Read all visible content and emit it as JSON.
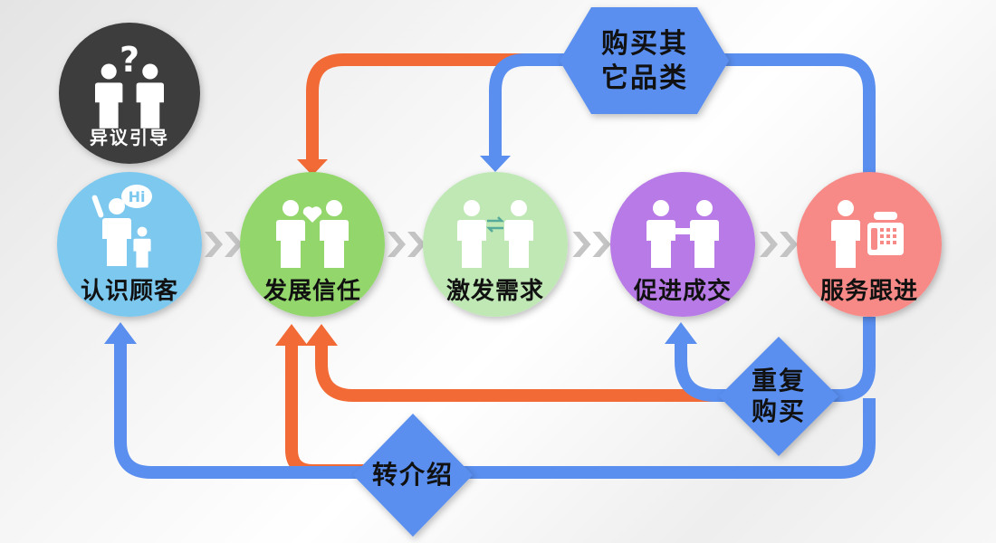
{
  "objection": {
    "label": "异议引导",
    "color": "#3d3d3d"
  },
  "steps": [
    {
      "label": "认识顾客",
      "color": "#7cc8ef",
      "bubble": "Hi",
      "icon": "greeting-people-icon"
    },
    {
      "label": "发展信任",
      "color": "#92d66c",
      "icon": "people-heart-icon"
    },
    {
      "label": "激发需求",
      "color": "#bfe8b5",
      "icon": "people-exchange-icon"
    },
    {
      "label": "促进成交",
      "color": "#b77ae6",
      "icon": "handshake-icon"
    },
    {
      "label": "服务跟进",
      "color": "#f78a86",
      "icon": "person-phone-icon"
    }
  ],
  "loops": {
    "buy_other": {
      "line1": "购买其",
      "line2": "它品类",
      "color": "#5a8ff0"
    },
    "repeat": {
      "line1": "重复",
      "line2": "购买",
      "color": "#5a8ff0"
    },
    "referral": {
      "label": "转介绍",
      "color": "#5a8ff0"
    }
  },
  "colors": {
    "blue": "#5a8ff0",
    "orange": "#f26a35",
    "chevron": "#c4c4c4"
  }
}
